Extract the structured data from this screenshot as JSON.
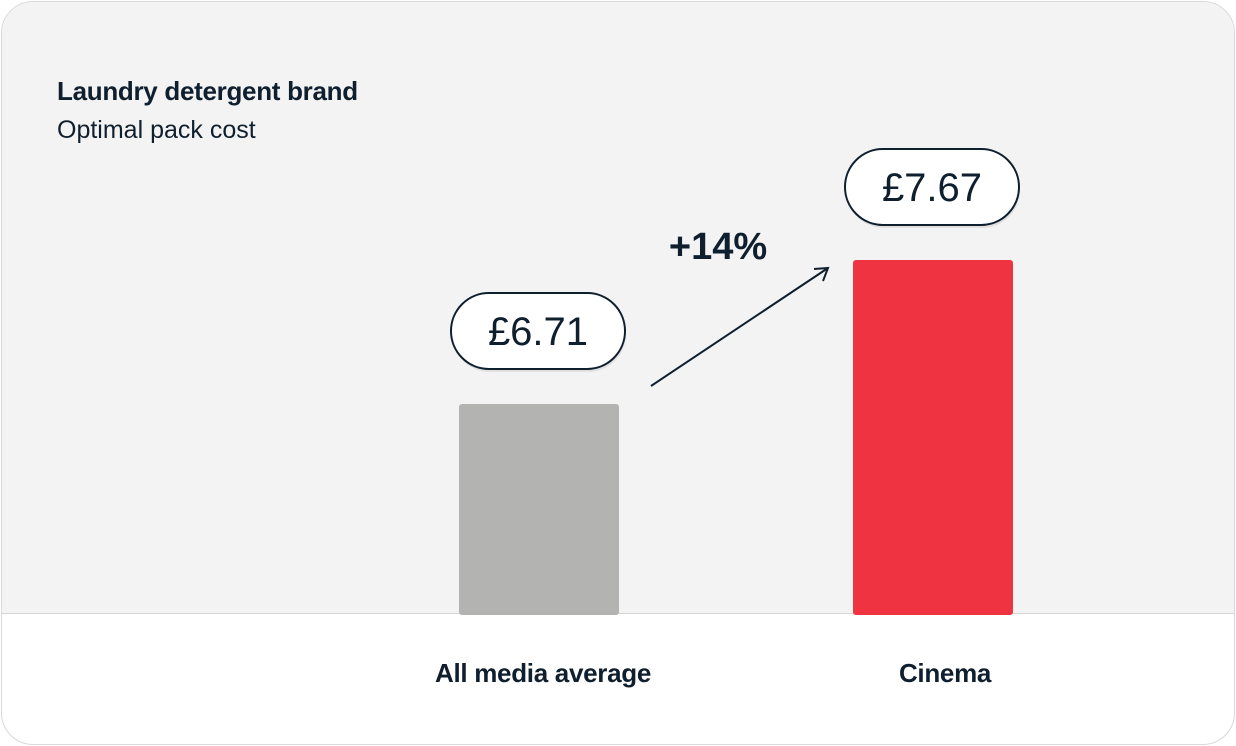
{
  "chart_data": {
    "type": "bar",
    "title": "Laundry detergent brand",
    "subtitle": "Optimal pack cost",
    "categories": [
      "All media average",
      "Cinema"
    ],
    "values": [
      6.71,
      7.67
    ],
    "value_labels": [
      "£6.71",
      "£7.67"
    ],
    "bar_colors": [
      "#b3b4b1",
      "#ef3340"
    ],
    "annotation": "+14%",
    "xlabel": "",
    "ylabel": "",
    "grid": false,
    "legend": "none"
  }
}
